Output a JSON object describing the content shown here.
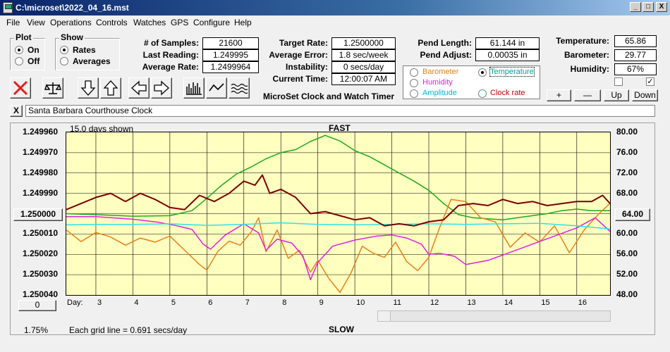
{
  "window": {
    "title": "C:\\microset\\2022_04_16.mst",
    "minimize": "_",
    "maximize": "□",
    "close": "X"
  },
  "menu": [
    "File",
    "View",
    "Operations",
    "Controls",
    "Watches",
    "GPS",
    "Configure",
    "Help"
  ],
  "plot_group": {
    "title": "Plot",
    "options": [
      "On",
      "Off"
    ],
    "selected": "On"
  },
  "show_group": {
    "title": "Show",
    "options": [
      "Rates",
      "Averages"
    ],
    "selected": "Rates"
  },
  "stats": {
    "samples_label": "# of Samples:",
    "samples": "21600",
    "last_reading_label": "Last Reading:",
    "last_reading": "1.249995",
    "average_rate_label": "Average Rate:",
    "average_rate": "1.2499964"
  },
  "targets": {
    "target_rate_label": "Target Rate:",
    "target_rate": "1.2500000",
    "average_error_label": "Average Error:",
    "average_error": "1.8 sec/week",
    "instability_label": "Instability:",
    "instability": "0 secs/day",
    "current_time_label": "Current Time:",
    "current_time": "12:00:07 AM"
  },
  "app_caption": "MicroSet Clock and Watch Timer",
  "pendulum": {
    "length_label": "Pend Length:",
    "length": "61.144 in",
    "adjust_label": "Pend Adjust:",
    "adjust": "0.00035 in"
  },
  "legend": {
    "items": [
      {
        "label": "Barometer",
        "color": "#e8801a",
        "selected": false
      },
      {
        "label": "Temperature",
        "color": "#00a0a0",
        "selected": true
      },
      {
        "label": "Humidity",
        "color": "#e020e0",
        "selected": false
      },
      {
        "label": "Clock rate",
        "color": "#c00000",
        "selected": false
      },
      {
        "label": "Amplitude",
        "color": "#00b8e0",
        "selected": false
      }
    ]
  },
  "environment": {
    "temperature_label": "Temperature:",
    "temperature": "65.86",
    "barometer_label": "Barometer:",
    "barometer": "29.77",
    "humidity_label": "Humidity:",
    "humidity": "67%",
    "checkbox1_checked": false,
    "checkbox2_checked": true
  },
  "scale_buttons": {
    "plus": "+",
    "minus": "—",
    "up": "Up",
    "down": "Down"
  },
  "clock_name": {
    "clear_button": "X",
    "value": "Santa Barbara Courthouse Clock"
  },
  "chart_info": {
    "days_shown": "15.0 days shown",
    "fast_label": "FAST",
    "slow_label": "SLOW",
    "grid_line_note": "Each grid line = 0.691 secs/day",
    "left_center_value": "1.250000",
    "right_center_value": "64.00",
    "bottom_left_button": "0",
    "bottom_left_percent": "1.75%",
    "day_prefix": "Day:"
  },
  "chart_data": {
    "type": "line",
    "x_label": "Day",
    "x_ticks": [
      3,
      4,
      5,
      6,
      7,
      8,
      9,
      10,
      11,
      12,
      13,
      14,
      15,
      16
    ],
    "xlim": [
      2.2,
      16.9
    ],
    "left_axis": {
      "ticks": [
        "1.249960",
        "1.249970",
        "1.249980",
        "1.249990",
        "1.250000",
        "1.250010",
        "1.250020",
        "1.250030",
        "1.250040"
      ],
      "ylim": [
        1.24996,
        1.25004
      ],
      "inverted": true
    },
    "right_axis": {
      "ticks": [
        "80.00",
        "76.00",
        "72.00",
        "68.00",
        "64.00",
        "60.00",
        "56.00",
        "52.00",
        "48.00"
      ],
      "ylim": [
        48,
        80
      ]
    },
    "grid": true,
    "series": [
      {
        "name": "Clock rate",
        "color": "#7a0000",
        "axis": "left",
        "x": [
          2.2,
          2.6,
          3.0,
          3.4,
          3.8,
          4.2,
          4.6,
          5.0,
          5.4,
          5.8,
          6.2,
          6.6,
          7.0,
          7.3,
          7.5,
          7.7,
          8.0,
          8.4,
          8.8,
          9.2,
          9.6,
          10.0,
          10.4,
          10.8,
          11.2,
          11.6,
          12.0,
          12.4,
          12.8,
          13.2,
          13.6,
          14.0,
          14.4,
          14.8,
          15.2,
          15.6,
          16.0,
          16.4,
          16.7,
          16.9
        ],
        "y": [
          1.249998,
          1.249995,
          1.249992,
          1.24999,
          1.249994,
          1.24999,
          1.249993,
          1.249997,
          1.249998,
          1.249991,
          1.249994,
          1.24999,
          1.249984,
          1.249986,
          1.249981,
          1.24999,
          1.249988,
          1.249992,
          1.25,
          1.249999,
          1.250001,
          1.250003,
          1.250002,
          1.250006,
          1.250005,
          1.250006,
          1.250004,
          1.250003,
          1.249996,
          1.249995,
          1.249996,
          1.249993,
          1.249995,
          1.249994,
          1.249996,
          1.249995,
          1.249994,
          1.249994,
          1.249991,
          1.249995
        ]
      },
      {
        "name": "Temperature",
        "color": "#1ca81c",
        "axis": "right",
        "x": [
          2.2,
          3.0,
          4.0,
          5.0,
          5.6,
          6.0,
          6.4,
          6.8,
          7.2,
          7.6,
          8.0,
          8.4,
          8.8,
          9.2,
          9.6,
          10.0,
          10.4,
          10.8,
          11.2,
          11.6,
          12.0,
          12.4,
          12.8,
          13.2,
          13.6,
          14.0,
          14.4,
          14.8,
          15.2,
          15.6,
          16.0,
          16.4,
          16.9
        ],
        "y": [
          64.0,
          63.8,
          63.5,
          63.6,
          64.6,
          67.0,
          69.6,
          71.8,
          73.2,
          74.8,
          76.0,
          76.6,
          78.2,
          79.4,
          78.3,
          76.4,
          75.2,
          73.6,
          72.0,
          70.4,
          68.6,
          66.0,
          63.8,
          63.2,
          63.0,
          62.8,
          63.2,
          63.6,
          64.0,
          64.6,
          64.9,
          64.6,
          64.6
        ]
      },
      {
        "name": "Humidity",
        "color": "#e020e0",
        "axis": "right",
        "x": [
          2.2,
          3.0,
          4.0,
          4.7,
          5.2,
          5.6,
          5.9,
          6.1,
          6.5,
          7.0,
          7.4,
          7.6,
          7.9,
          8.3,
          8.6,
          8.8,
          9.0,
          9.4,
          10.0,
          10.6,
          11.0,
          11.4,
          11.8,
          12.0,
          12.3,
          12.7,
          13.0,
          13.6,
          14.2,
          14.8,
          15.4,
          16.0,
          16.5,
          16.9
        ],
        "y": [
          63.4,
          63.4,
          62.9,
          62.3,
          61.6,
          60.9,
          58.0,
          57.0,
          59.8,
          62.0,
          60.2,
          56.8,
          59.0,
          58.2,
          55.6,
          51.0,
          54.4,
          57.6,
          58.8,
          59.6,
          59.8,
          59.2,
          58.0,
          56.0,
          56.2,
          55.6,
          54.0,
          54.8,
          56.4,
          58.0,
          59.6,
          61.2,
          63.2,
          60.5
        ]
      },
      {
        "name": "Amplitude",
        "color": "#30e0e8",
        "axis": "right",
        "x": [
          2.2,
          3.0,
          4.0,
          5.0,
          6.0,
          7.0,
          8.0,
          9.0,
          10.0,
          11.0,
          12.0,
          13.0,
          14.0,
          15.0,
          16.0,
          16.9
        ],
        "y": [
          61.8,
          61.9,
          61.9,
          62.0,
          61.7,
          61.9,
          62.2,
          61.9,
          61.8,
          61.9,
          62.0,
          61.9,
          62.0,
          62.1,
          61.6,
          61.0
        ]
      },
      {
        "name": "Barometer",
        "color": "#e8801a",
        "axis": "right",
        "x": [
          2.2,
          2.6,
          3.0,
          3.4,
          3.8,
          4.2,
          4.6,
          5.0,
          5.4,
          5.8,
          6.0,
          6.3,
          6.6,
          6.9,
          7.2,
          7.4,
          7.6,
          7.9,
          8.2,
          8.5,
          8.8,
          9.0,
          9.3,
          9.6,
          9.9,
          10.2,
          10.5,
          10.8,
          11.1,
          11.4,
          11.7,
          12.0,
          12.3,
          12.6,
          13.0,
          13.4,
          13.8,
          14.2,
          14.6,
          15.0,
          15.4,
          15.8,
          16.2,
          16.6,
          16.9
        ],
        "y": [
          60.8,
          58.5,
          60.3,
          59.4,
          57.8,
          59.2,
          58.4,
          59.6,
          56.8,
          54.0,
          52.9,
          56.6,
          58.6,
          57.8,
          60.4,
          63.2,
          56.5,
          60.8,
          55.2,
          56.8,
          52.5,
          54.8,
          51.2,
          48.5,
          52.4,
          57.6,
          56.2,
          55.4,
          58.4,
          54.6,
          52.8,
          55.4,
          61.4,
          66.8,
          66.4,
          63.2,
          62.4,
          57.4,
          60.2,
          58.4,
          61.6,
          56.3,
          60.8,
          64.0,
          66.0
        ]
      }
    ]
  }
}
